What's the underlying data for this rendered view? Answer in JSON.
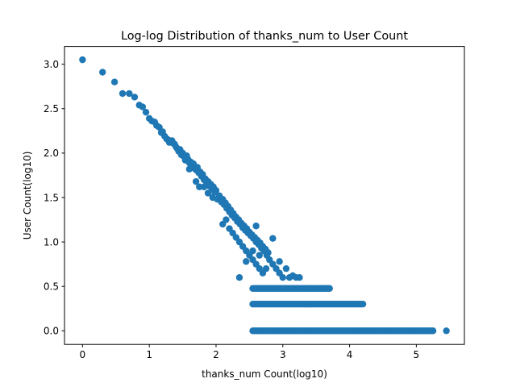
{
  "chart_data": {
    "type": "scatter",
    "title": "Log-log Distribution of thanks_num to User Count",
    "xlabel": "thanks_num Count(log10)",
    "ylabel": "User Count(log10)",
    "xlim": [
      -0.27,
      5.72
    ],
    "ylim": [
      -0.153,
      3.2
    ],
    "xticks": [
      "0",
      "1",
      "2",
      "3",
      "4",
      "5"
    ],
    "yticks": [
      "0.0",
      "0.5",
      "1.0",
      "1.5",
      "2.0",
      "2.5",
      "3.0"
    ],
    "grid": false,
    "legend": "none",
    "marker_color": "#1f77b4",
    "points": [
      [
        0,
        3.05
      ],
      [
        0.3,
        2.91
      ],
      [
        0.48,
        2.8
      ],
      [
        0.6,
        2.67
      ],
      [
        0.7,
        2.67
      ],
      [
        0.78,
        2.63
      ],
      [
        0.85,
        2.54
      ],
      [
        0.9,
        2.52
      ],
      [
        0.95,
        2.46
      ],
      [
        1.0,
        2.39
      ],
      [
        1.04,
        2.36
      ],
      [
        1.08,
        2.35
      ],
      [
        1.11,
        2.31
      ],
      [
        1.15,
        2.29
      ],
      [
        1.18,
        2.23
      ],
      [
        1.2,
        2.24
      ],
      [
        1.23,
        2.19
      ],
      [
        1.26,
        2.16
      ],
      [
        1.28,
        2.15
      ],
      [
        1.3,
        2.12
      ],
      [
        1.32,
        2.13
      ],
      [
        1.34,
        2.14
      ],
      [
        1.36,
        2.11
      ],
      [
        1.38,
        2.1
      ],
      [
        1.4,
        2.07
      ],
      [
        1.42,
        2.05
      ],
      [
        1.44,
        2.02
      ],
      [
        1.46,
        2.04
      ],
      [
        1.48,
        1.98
      ],
      [
        1.5,
        2.0
      ],
      [
        1.52,
        1.96
      ],
      [
        1.54,
        1.92
      ],
      [
        1.56,
        1.97
      ],
      [
        1.58,
        1.93
      ],
      [
        1.6,
        1.89
      ],
      [
        1.62,
        1.9
      ],
      [
        1.64,
        1.86
      ],
      [
        1.66,
        1.88
      ],
      [
        1.68,
        1.83
      ],
      [
        1.7,
        1.81
      ],
      [
        1.72,
        1.84
      ],
      [
        1.74,
        1.78
      ],
      [
        1.76,
        1.79
      ],
      [
        1.78,
        1.74
      ],
      [
        1.8,
        1.76
      ],
      [
        1.82,
        1.7
      ],
      [
        1.84,
        1.71
      ],
      [
        1.86,
        1.66
      ],
      [
        1.88,
        1.68
      ],
      [
        1.9,
        1.63
      ],
      [
        1.92,
        1.65
      ],
      [
        1.94,
        1.6
      ],
      [
        1.96,
        1.62
      ],
      [
        1.98,
        1.56
      ],
      [
        2.0,
        1.58
      ],
      [
        1.6,
        1.82
      ],
      [
        1.7,
        1.68
      ],
      [
        1.75,
        1.62
      ],
      [
        1.82,
        1.62
      ],
      [
        1.88,
        1.55
      ],
      [
        1.95,
        1.5
      ],
      [
        2.02,
        1.48
      ],
      [
        2.05,
        1.52
      ],
      [
        2.08,
        1.45
      ],
      [
        2.1,
        1.48
      ],
      [
        2.12,
        1.42
      ],
      [
        2.14,
        1.44
      ],
      [
        2.16,
        1.38
      ],
      [
        2.18,
        1.4
      ],
      [
        2.2,
        1.34
      ],
      [
        2.22,
        1.36
      ],
      [
        2.24,
        1.3
      ],
      [
        2.26,
        1.32
      ],
      [
        2.28,
        1.27
      ],
      [
        2.3,
        1.28
      ],
      [
        2.32,
        1.23
      ],
      [
        2.34,
        1.25
      ],
      [
        2.36,
        1.2
      ],
      [
        2.38,
        1.21
      ],
      [
        2.4,
        1.16
      ],
      [
        2.42,
        1.18
      ],
      [
        2.44,
        1.13
      ],
      [
        2.46,
        1.15
      ],
      [
        2.48,
        1.1
      ],
      [
        2.5,
        1.11
      ],
      [
        2.52,
        1.07
      ],
      [
        2.54,
        1.08
      ],
      [
        2.56,
        1.04
      ],
      [
        2.58,
        1.05
      ],
      [
        2.6,
        1.0
      ],
      [
        2.62,
        1.02
      ],
      [
        2.64,
        0.97
      ],
      [
        2.66,
        0.99
      ],
      [
        2.68,
        0.93
      ],
      [
        2.7,
        0.95
      ],
      [
        2.72,
        0.9
      ],
      [
        2.74,
        0.92
      ],
      [
        2.76,
        0.85
      ],
      [
        2.78,
        0.88
      ],
      [
        2.8,
        0.8
      ],
      [
        2.1,
        1.2
      ],
      [
        2.15,
        1.25
      ],
      [
        2.2,
        1.15
      ],
      [
        2.25,
        1.1
      ],
      [
        2.3,
        1.05
      ],
      [
        2.35,
        1.0
      ],
      [
        2.4,
        0.95
      ],
      [
        2.45,
        0.9
      ],
      [
        2.5,
        0.85
      ],
      [
        2.55,
        0.8
      ],
      [
        2.6,
        0.75
      ],
      [
        2.65,
        0.7
      ],
      [
        2.7,
        0.65
      ],
      [
        2.75,
        0.7
      ],
      [
        2.85,
        0.75
      ],
      [
        2.9,
        0.7
      ],
      [
        2.95,
        0.65
      ],
      [
        3.0,
        0.6
      ],
      [
        3.05,
        0.7
      ],
      [
        3.1,
        0.6
      ],
      [
        3.15,
        0.62
      ],
      [
        3.2,
        0.6
      ],
      [
        3.25,
        0.6
      ],
      [
        2.45,
        0.78
      ],
      [
        2.35,
        0.6
      ],
      [
        2.6,
        1.18
      ],
      [
        2.85,
        1.04
      ],
      [
        2.95,
        0.78
      ],
      [
        2.55,
        0.9
      ],
      [
        2.65,
        0.85
      ]
    ],
    "bands": [
      {
        "y": 0.477,
        "x_start": 2.55,
        "x_end": 3.7,
        "step": 0.025
      },
      {
        "y": 0.301,
        "x_start": 2.55,
        "x_end": 4.2,
        "step": 0.025
      },
      {
        "y": 0.0,
        "x_start": 2.55,
        "x_end": 5.25,
        "step": 0.02
      }
    ],
    "extra_points": [
      [
        5.45,
        0.0
      ]
    ]
  }
}
